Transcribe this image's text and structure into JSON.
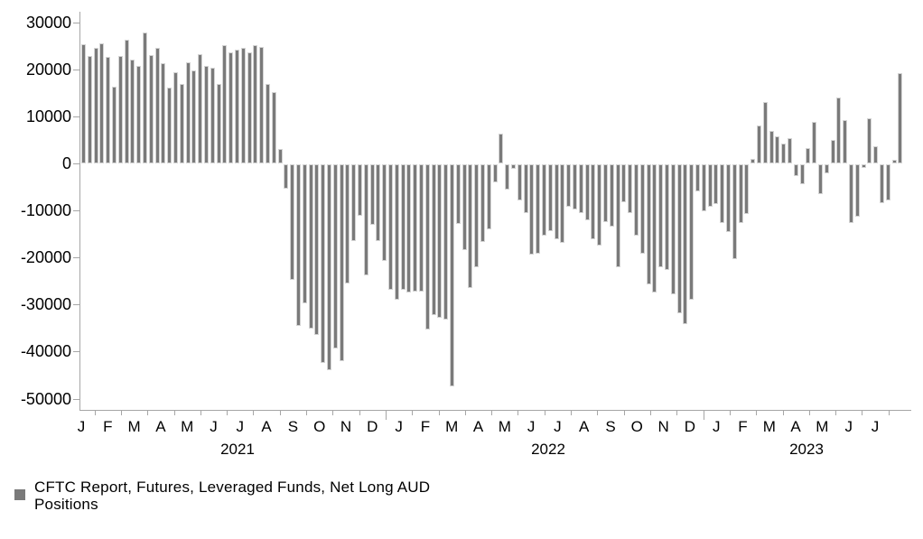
{
  "chart_data": {
    "type": "bar",
    "title": "",
    "xlabel": "",
    "ylabel": "",
    "frequency": "weekly",
    "ylim": [
      -50000,
      30000
    ],
    "ytick_step": 10000,
    "grid": "off",
    "legend_position": "bottom-left",
    "bar_color": "#7a7a7a",
    "bar_edge_color": "#d4d4d4",
    "axis_color": "#a6a6a6",
    "text_color": "#000000",
    "ytick_labels": [
      "30000",
      "20000",
      "10000",
      "0",
      "-10000",
      "-20000",
      "-30000",
      "-40000",
      "-50000"
    ],
    "x_axis": {
      "years": [
        {
          "label": "2021",
          "months": [
            "J",
            "F",
            "M",
            "A",
            "M",
            "J",
            "J",
            "A",
            "S",
            "O",
            "N",
            "D"
          ]
        },
        {
          "label": "2022",
          "months": [
            "J",
            "F",
            "M",
            "A",
            "M",
            "J",
            "J",
            "A",
            "S",
            "O",
            "N",
            "D"
          ]
        },
        {
          "label": "2023",
          "months": [
            "J",
            "F",
            "M",
            "A",
            "M",
            "J",
            "J"
          ]
        }
      ]
    },
    "legend": {
      "series_name": "CFTC Report, Futures, Leveraged Funds, Net Long AUD Positions",
      "line1": "CFTC Report, Futures, Leveraged Funds, Net Long AUD",
      "line2": "Positions"
    },
    "values": [
      25400,
      22900,
      24600,
      25500,
      22700,
      16300,
      22900,
      26400,
      22100,
      20700,
      27900,
      23100,
      24500,
      21300,
      16200,
      19400,
      16900,
      21500,
      19700,
      23200,
      20800,
      20300,
      16900,
      25200,
      23700,
      24100,
      24600,
      23700,
      25200,
      24800,
      16900,
      15200,
      3100,
      -5100,
      -24500,
      -34300,
      -29500,
      -35000,
      -36300,
      -42200,
      -43700,
      -39100,
      -41900,
      -25300,
      -16300,
      -10900,
      -23600,
      -12800,
      -16300,
      -20500,
      -26600,
      -28700,
      -26700,
      -27200,
      -27000,
      -27100,
      -35100,
      -32100,
      -32700,
      -33000,
      -47200,
      -12700,
      -18300,
      -26300,
      -21800,
      -16500,
      -13800,
      -3800,
      6400,
      -5300,
      -900,
      -7700,
      -10300,
      -19100,
      -18900,
      -15100,
      -14100,
      -15900,
      -16700,
      -9000,
      -9600,
      -10300,
      -11900,
      -16000,
      -17300,
      -12300,
      -13300,
      -21800,
      -8000,
      -10300,
      -15100,
      -18900,
      -25600,
      -27300,
      -21800,
      -22400,
      -27600,
      -31700,
      -34000,
      -28800,
      -5800,
      -9900,
      -9000,
      -8500,
      -12500,
      -14400,
      -20200,
      -12500,
      -10600,
      1000,
      8000,
      13100,
      6900,
      5800,
      4300,
      5300,
      -2400,
      -4200,
      3300,
      8800,
      -6400,
      -2000,
      5000,
      14000,
      9300,
      -12500,
      -11100,
      -700,
      9600,
      3700,
      -8300,
      -7700,
      800,
      19200
    ]
  }
}
